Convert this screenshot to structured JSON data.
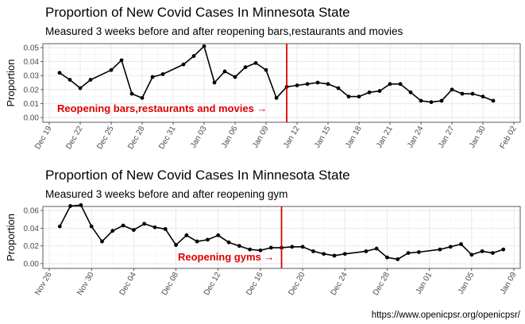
{
  "caption": "https://www.openicpsr.org/openicpsr/",
  "chart_data": [
    {
      "type": "line",
      "title": "Proportion of New Covid Cases In Minnesota State",
      "subtitle": "Measured 3 weeks before and after reopening bars,restaurants and movies",
      "xlabel": "",
      "ylabel": "Proportion",
      "x_is_date": true,
      "xlim": [
        "2020-12-19",
        "2021-02-02"
      ],
      "ylim": [
        0,
        0.05
      ],
      "yticks": [
        0.0,
        0.01,
        0.02,
        0.03,
        0.04,
        0.05
      ],
      "ytick_labels": [
        "0.00",
        "0.01",
        "0.02",
        "0.03",
        "0.04",
        "0.05"
      ],
      "xticks": [
        "2020-12-19",
        "2020-12-22",
        "2020-12-25",
        "2020-12-28",
        "2020-12-31",
        "2021-01-03",
        "2021-01-06",
        "2021-01-09",
        "2021-01-12",
        "2021-01-15",
        "2021-01-18",
        "2021-01-21",
        "2021-01-24",
        "2021-01-27",
        "2021-01-30",
        "2021-02-02"
      ],
      "xtick_labels": [
        "Dec 19",
        "Dec 22",
        "Dec 25",
        "Dec 28",
        "Dec 31",
        "Jan 03",
        "Jan 06",
        "Jan 09",
        "Jan 12",
        "Jan 15",
        "Jan 18",
        "Jan 21",
        "Jan 24",
        "Jan 27",
        "Jan 30",
        "Feb 02"
      ],
      "grid": true,
      "series_color": "#000000",
      "vline": {
        "x": "2021-01-11",
        "color": "#e00000"
      },
      "annotation": {
        "text": "Reopening bars,restaurants and movies →",
        "color": "#e00000"
      },
      "points": [
        {
          "x": "2020-12-20",
          "y": 0.032
        },
        {
          "x": "2020-12-21",
          "y": 0.027
        },
        {
          "x": "2020-12-22",
          "y": 0.021
        },
        {
          "x": "2020-12-23",
          "y": 0.027
        },
        {
          "x": "2020-12-25",
          "y": 0.034
        },
        {
          "x": "2020-12-26",
          "y": 0.041
        },
        {
          "x": "2020-12-27",
          "y": 0.017
        },
        {
          "x": "2020-12-28",
          "y": 0.014
        },
        {
          "x": "2020-12-29",
          "y": 0.029
        },
        {
          "x": "2020-12-30",
          "y": 0.031
        },
        {
          "x": "2021-01-01",
          "y": 0.038
        },
        {
          "x": "2021-01-02",
          "y": 0.044
        },
        {
          "x": "2021-01-03",
          "y": 0.051
        },
        {
          "x": "2021-01-04",
          "y": 0.025
        },
        {
          "x": "2021-01-05",
          "y": 0.033
        },
        {
          "x": "2021-01-06",
          "y": 0.029
        },
        {
          "x": "2021-01-07",
          "y": 0.036
        },
        {
          "x": "2021-01-08",
          "y": 0.039
        },
        {
          "x": "2021-01-09",
          "y": 0.034
        },
        {
          "x": "2021-01-10",
          "y": 0.014
        },
        {
          "x": "2021-01-11",
          "y": 0.022
        },
        {
          "x": "2021-01-12",
          "y": 0.023
        },
        {
          "x": "2021-01-13",
          "y": 0.024
        },
        {
          "x": "2021-01-14",
          "y": 0.025
        },
        {
          "x": "2021-01-15",
          "y": 0.024
        },
        {
          "x": "2021-01-16",
          "y": 0.021
        },
        {
          "x": "2021-01-17",
          "y": 0.015
        },
        {
          "x": "2021-01-18",
          "y": 0.015
        },
        {
          "x": "2021-01-19",
          "y": 0.018
        },
        {
          "x": "2021-01-20",
          "y": 0.019
        },
        {
          "x": "2021-01-21",
          "y": 0.024
        },
        {
          "x": "2021-01-22",
          "y": 0.024
        },
        {
          "x": "2021-01-23",
          "y": 0.018
        },
        {
          "x": "2021-01-24",
          "y": 0.012
        },
        {
          "x": "2021-01-25",
          "y": 0.011
        },
        {
          "x": "2021-01-26",
          "y": 0.012
        },
        {
          "x": "2021-01-27",
          "y": 0.02
        },
        {
          "x": "2021-01-28",
          "y": 0.017
        },
        {
          "x": "2021-01-29",
          "y": 0.017
        },
        {
          "x": "2021-01-30",
          "y": 0.015
        },
        {
          "x": "2021-01-31",
          "y": 0.012
        }
      ]
    },
    {
      "type": "line",
      "title": "Proportion of New Covid Cases In Minnesota State",
      "subtitle": "Measured 3 weeks before and after reopening gym",
      "xlabel": "",
      "ylabel": "Proportion",
      "x_is_date": true,
      "xlim": [
        "2020-11-26",
        "2021-01-09"
      ],
      "ylim": [
        0,
        0.06
      ],
      "yticks": [
        0.0,
        0.02,
        0.04,
        0.06
      ],
      "ytick_labels": [
        "0.00",
        "0.02",
        "0.04",
        "0.06"
      ],
      "xticks": [
        "2020-11-26",
        "2020-11-30",
        "2020-12-04",
        "2020-12-08",
        "2020-12-12",
        "2020-12-16",
        "2020-12-20",
        "2020-12-24",
        "2020-12-28",
        "2021-01-01",
        "2021-01-05",
        "2021-01-09"
      ],
      "xtick_labels": [
        "Nov 26",
        "Nov 30",
        "Dec 04",
        "Dec 08",
        "Dec 12",
        "Dec 16",
        "Dec 20",
        "Dec 24",
        "Dec 28",
        "Jan 01",
        "Jan 05",
        "Jan 09"
      ],
      "grid": true,
      "series_color": "#000000",
      "vline": {
        "x": "2020-12-18",
        "color": "#e00000"
      },
      "annotation": {
        "text": "Reopening gyms →",
        "color": "#e00000"
      },
      "points": [
        {
          "x": "2020-11-27",
          "y": 0.042
        },
        {
          "x": "2020-11-28",
          "y": 0.065
        },
        {
          "x": "2020-11-29",
          "y": 0.066
        },
        {
          "x": "2020-11-30",
          "y": 0.042
        },
        {
          "x": "2020-12-01",
          "y": 0.025
        },
        {
          "x": "2020-12-02",
          "y": 0.037
        },
        {
          "x": "2020-12-03",
          "y": 0.043
        },
        {
          "x": "2020-12-04",
          "y": 0.038
        },
        {
          "x": "2020-12-05",
          "y": 0.045
        },
        {
          "x": "2020-12-06",
          "y": 0.041
        },
        {
          "x": "2020-12-07",
          "y": 0.039
        },
        {
          "x": "2020-12-08",
          "y": 0.021
        },
        {
          "x": "2020-12-09",
          "y": 0.032
        },
        {
          "x": "2020-12-10",
          "y": 0.025
        },
        {
          "x": "2020-12-11",
          "y": 0.027
        },
        {
          "x": "2020-12-12",
          "y": 0.032
        },
        {
          "x": "2020-12-13",
          "y": 0.024
        },
        {
          "x": "2020-12-14",
          "y": 0.02
        },
        {
          "x": "2020-12-15",
          "y": 0.016
        },
        {
          "x": "2020-12-16",
          "y": 0.015
        },
        {
          "x": "2020-12-17",
          "y": 0.018
        },
        {
          "x": "2020-12-18",
          "y": 0.018
        },
        {
          "x": "2020-12-19",
          "y": 0.019
        },
        {
          "x": "2020-12-20",
          "y": 0.019
        },
        {
          "x": "2020-12-21",
          "y": 0.014
        },
        {
          "x": "2020-12-22",
          "y": 0.011
        },
        {
          "x": "2020-12-23",
          "y": 0.009
        },
        {
          "x": "2020-12-24",
          "y": 0.011
        },
        {
          "x": "2020-12-26",
          "y": 0.014
        },
        {
          "x": "2020-12-27",
          "y": 0.017
        },
        {
          "x": "2020-12-28",
          "y": 0.007
        },
        {
          "x": "2020-12-29",
          "y": 0.005
        },
        {
          "x": "2020-12-30",
          "y": 0.012
        },
        {
          "x": "2020-12-31",
          "y": 0.013
        },
        {
          "x": "2021-01-02",
          "y": 0.016
        },
        {
          "x": "2021-01-03",
          "y": 0.019
        },
        {
          "x": "2021-01-04",
          "y": 0.022
        },
        {
          "x": "2021-01-05",
          "y": 0.01
        },
        {
          "x": "2021-01-06",
          "y": 0.014
        },
        {
          "x": "2021-01-07",
          "y": 0.012
        },
        {
          "x": "2021-01-08",
          "y": 0.016
        }
      ]
    }
  ]
}
